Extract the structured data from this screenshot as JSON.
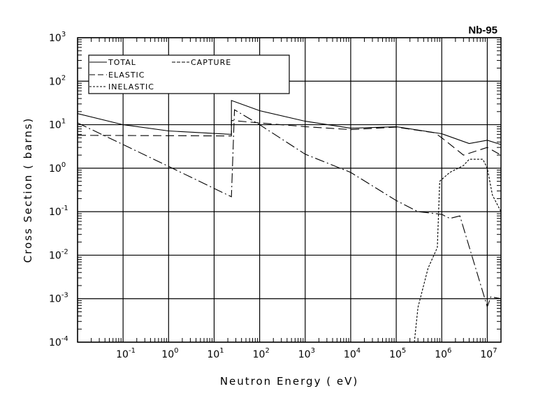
{
  "chart_data": {
    "type": "line",
    "title": "Nb-95",
    "xlabel": "Neutron Energy ( eV)",
    "ylabel": "Cross Section ( barns)",
    "xscale": "log",
    "yscale": "log",
    "xlim": [
      0.01,
      20000000
    ],
    "ylim": [
      0.0001,
      1000
    ],
    "grid": true,
    "legend_placement": "top-left",
    "x_ticks": [
      {
        "base": "10",
        "exp": "-1"
      },
      {
        "base": "10",
        "exp": "0"
      },
      {
        "base": "10",
        "exp": "1"
      },
      {
        "base": "10",
        "exp": "2"
      },
      {
        "base": "10",
        "exp": "3"
      },
      {
        "base": "10",
        "exp": "4"
      },
      {
        "base": "10",
        "exp": "5"
      },
      {
        "base": "10",
        "exp": "6"
      },
      {
        "base": "10",
        "exp": "7"
      }
    ],
    "y_ticks": [
      {
        "base": "10",
        "exp": "-4"
      },
      {
        "base": "10",
        "exp": "-3"
      },
      {
        "base": "10",
        "exp": "-2"
      },
      {
        "base": "10",
        "exp": "-1"
      },
      {
        "base": "10",
        "exp": "0"
      },
      {
        "base": "10",
        "exp": "1"
      },
      {
        "base": "10",
        "exp": "2"
      },
      {
        "base": "10",
        "exp": "3"
      }
    ],
    "series": [
      {
        "name": "TOTAL",
        "dash": "solid",
        "points": [
          [
            0.01,
            18
          ],
          [
            0.1,
            10
          ],
          [
            1,
            7.2
          ],
          [
            24,
            6
          ],
          [
            24,
            36
          ],
          [
            100,
            21
          ],
          [
            1000,
            12
          ],
          [
            10000,
            8.3
          ],
          [
            100000,
            9
          ],
          [
            1000000,
            6.2
          ],
          [
            4000000,
            3.7
          ],
          [
            10000000,
            4.4
          ],
          [
            20000000,
            3.5
          ]
        ]
      },
      {
        "name": "ELASTIC",
        "dash": "long-dash",
        "points": [
          [
            0.01,
            5.7
          ],
          [
            1,
            5.6
          ],
          [
            24,
            5.5
          ],
          [
            24,
            12.5
          ],
          [
            100,
            11
          ],
          [
            1000,
            9
          ],
          [
            10000,
            7.7
          ],
          [
            100000,
            8.8
          ],
          [
            700000,
            6.5
          ],
          [
            1000000,
            5
          ],
          [
            3000000,
            2.0
          ],
          [
            10000000,
            3.0
          ],
          [
            20000000,
            2.0
          ]
        ]
      },
      {
        "name": "INELASTIC",
        "dash": "short-dash",
        "points": [
          [
            250000,
            0.0001
          ],
          [
            300000,
            0.00063
          ],
          [
            500000,
            0.005
          ],
          [
            800000,
            0.015
          ],
          [
            900000,
            0.5
          ],
          [
            1500000,
            0.8
          ],
          [
            3000000,
            1.15
          ],
          [
            4000000,
            1.6
          ],
          [
            8000000,
            1.6
          ],
          [
            10000000,
            1.0
          ],
          [
            13000000,
            0.24
          ],
          [
            20000000,
            0.1
          ]
        ]
      },
      {
        "name": "CAPTURE",
        "dash": "dash-dot",
        "points": [
          [
            0.01,
            11
          ],
          [
            0.1,
            3.5
          ],
          [
            1,
            1.1
          ],
          [
            24,
            0.22
          ],
          [
            24,
            0.22
          ],
          [
            28,
            22
          ],
          [
            100,
            10
          ],
          [
            1000,
            2.1
          ],
          [
            10000,
            0.8
          ],
          [
            100000,
            0.18
          ],
          [
            300000,
            0.1
          ],
          [
            1000000,
            0.087
          ],
          [
            1500000,
            0.07
          ],
          [
            2500000,
            0.08
          ],
          [
            10000000,
            0.00065
          ],
          [
            12000000,
            0.0011
          ],
          [
            20000000,
            0.001
          ]
        ]
      }
    ]
  }
}
